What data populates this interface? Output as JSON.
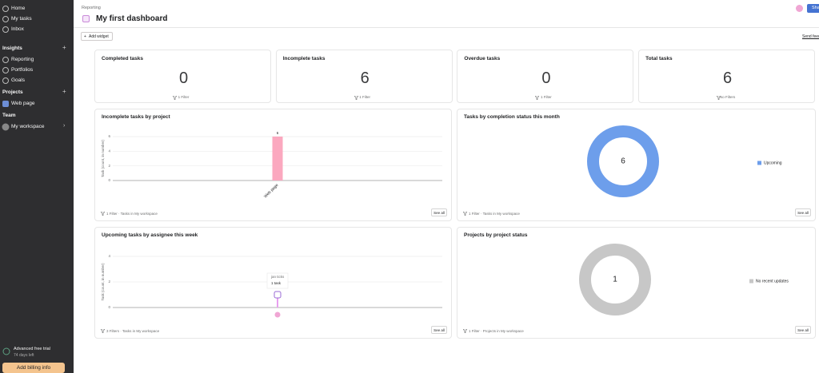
{
  "sidebar": {
    "nav": [
      "Home",
      "My tasks",
      "Inbox"
    ],
    "sections": [
      {
        "title": "Insights",
        "items": [
          "Reporting",
          "Portfolios",
          "Goals"
        ]
      },
      {
        "title": "Projects",
        "items": [
          "Web page"
        ]
      },
      {
        "title": "Team",
        "items": [
          "My workspace"
        ]
      }
    ],
    "trial": {
      "title": "Advanced free trial",
      "subtitle": "74 days left",
      "button": "Add billing info"
    }
  },
  "header": {
    "breadcrumb": "Reporting",
    "title": "My first dashboard",
    "share": "Share",
    "add_widget": "Add widget",
    "feedback": "Send feedback"
  },
  "stats": [
    {
      "title": "Completed tasks",
      "value": 0,
      "filter": "1 Filter"
    },
    {
      "title": "Incomplete tasks",
      "value": 6,
      "filter": "1 Filter"
    },
    {
      "title": "Overdue tasks",
      "value": 0,
      "filter": "1 Filter"
    },
    {
      "title": "Total tasks",
      "value": 6,
      "filter": "No Filters"
    }
  ],
  "widgets": [
    {
      "title": "Incomplete tasks by project",
      "footer": "1 Filter · Tasks in My workspace",
      "see_all": "See all",
      "chart": {
        "type": "bar",
        "y_label": "Task (count, in number)",
        "categories": [
          "Web page"
        ],
        "values": [
          6
        ],
        "color": "#fba8bf",
        "ylim": [
          0,
          6
        ],
        "yticks": [
          0,
          2,
          4,
          6
        ],
        "grid": true
      }
    },
    {
      "title": "Tasks by completion status this month",
      "footer": "1 Filter · Tasks in My workspace",
      "see_all": "See all",
      "chart": {
        "type": "donut",
        "categories": [
          "Upcoming"
        ],
        "values": [
          6
        ],
        "colors": [
          "#6d9eeb"
        ]
      }
    },
    {
      "title": "Upcoming tasks by assignee this week",
      "footer": "3 Filters · Tasks in My workspace",
      "see_all": "See all",
      "chart": {
        "type": "lollipop",
        "y_label": "Task (count, in number)",
        "categories": [
          null
        ],
        "values": [
          1
        ],
        "color": "#e8a0f0",
        "ylim": [
          0,
          4
        ],
        "yticks": [
          0,
          2,
          4
        ],
        "grid": true,
        "tooltip": {
          "title": "jan ticks",
          "text": "1 task"
        }
      }
    },
    {
      "title": "Projects by project status",
      "footer": "1 Filter · Projects in My workspace",
      "see_all": "See all",
      "chart": {
        "type": "donut",
        "categories": [
          "No recent updates"
        ],
        "values": [
          1
        ],
        "colors": [
          "#c7c7c7"
        ]
      }
    }
  ]
}
